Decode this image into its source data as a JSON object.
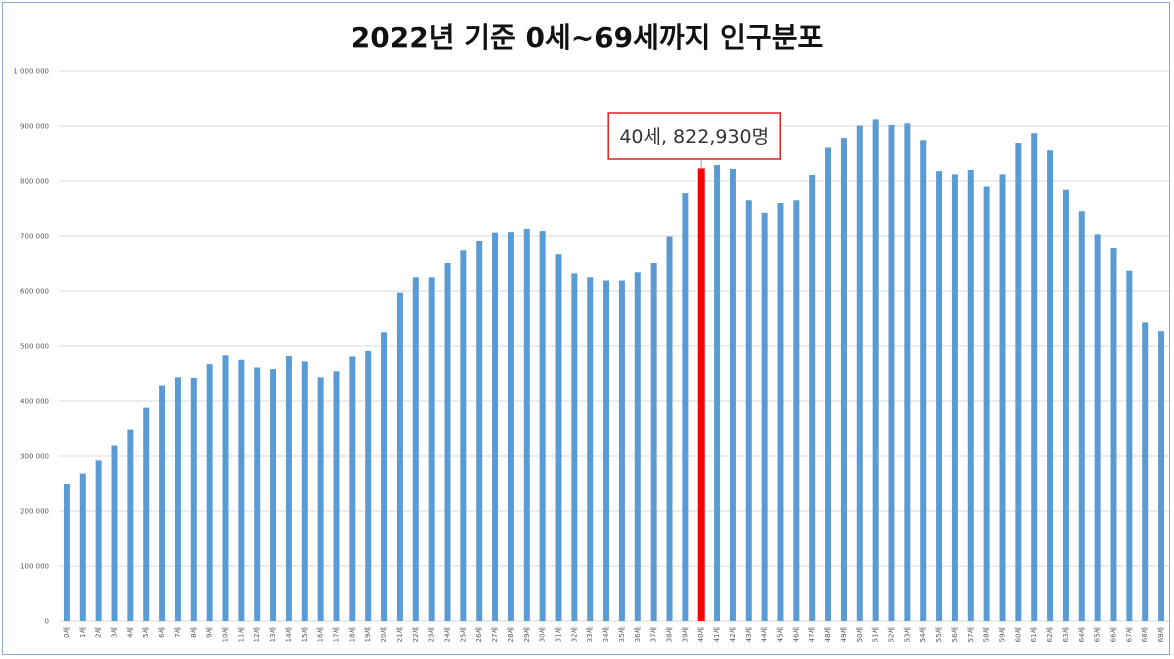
{
  "chart_data": {
    "type": "bar",
    "title": "2022년 기준 0세~69세까지 인구분포",
    "xlabel": "",
    "ylabel": "",
    "ylim": [
      0,
      1000000
    ],
    "yticks": [
      0,
      100000,
      200000,
      300000,
      400000,
      500000,
      600000,
      700000,
      800000,
      900000,
      1000000
    ],
    "ytick_labels": [
      "0",
      "100 000",
      "200 000",
      "300 000",
      "400 000",
      "500 000",
      "600 000",
      "700 000",
      "800 000",
      "900 000",
      "1 000 000"
    ],
    "grid": true,
    "categories": [
      "0세",
      "1세",
      "2세",
      "3세",
      "4세",
      "5세",
      "6세",
      "7세",
      "8세",
      "9세",
      "10세",
      "11세",
      "12세",
      "13세",
      "14세",
      "15세",
      "16세",
      "17세",
      "18세",
      "19세",
      "20세",
      "21세",
      "22세",
      "23세",
      "24세",
      "25세",
      "26세",
      "27세",
      "28세",
      "29세",
      "30세",
      "31세",
      "32세",
      "33세",
      "34세",
      "35세",
      "36세",
      "37세",
      "38세",
      "39세",
      "40세",
      "41세",
      "42세",
      "43세",
      "44세",
      "45세",
      "46세",
      "47세",
      "48세",
      "49세",
      "50세",
      "51세",
      "52세",
      "53세",
      "54세",
      "55세",
      "56세",
      "57세",
      "58세",
      "59세",
      "60세",
      "61세",
      "62세",
      "63세",
      "64세",
      "65세",
      "66세",
      "67세",
      "68세",
      "69세"
    ],
    "values": [
      249000,
      268000,
      292000,
      319000,
      348000,
      388000,
      428000,
      443000,
      442000,
      467000,
      483000,
      475000,
      461000,
      458000,
      482000,
      472000,
      443000,
      454000,
      481000,
      491000,
      525000,
      597000,
      625000,
      625000,
      651000,
      674000,
      691000,
      706000,
      707000,
      713000,
      709000,
      667000,
      632000,
      625000,
      619000,
      619000,
      634000,
      651000,
      699000,
      778000,
      822930,
      829000,
      822000,
      765000,
      742000,
      760000,
      765000,
      811000,
      861000,
      878000,
      901000,
      912000,
      902000,
      905000,
      874000,
      818000,
      812000,
      820000,
      790000,
      812000,
      869000,
      887000,
      856000,
      784000,
      745000,
      703000,
      678000,
      637000,
      543000,
      527000
    ],
    "highlight_index": 40,
    "colors": {
      "bar": "#5b9bd5",
      "highlight": "#ff0000",
      "callout_border": "#e02020",
      "grid": "#d9d9d9"
    },
    "annotation": {
      "text": "40세, 822,930명"
    }
  }
}
